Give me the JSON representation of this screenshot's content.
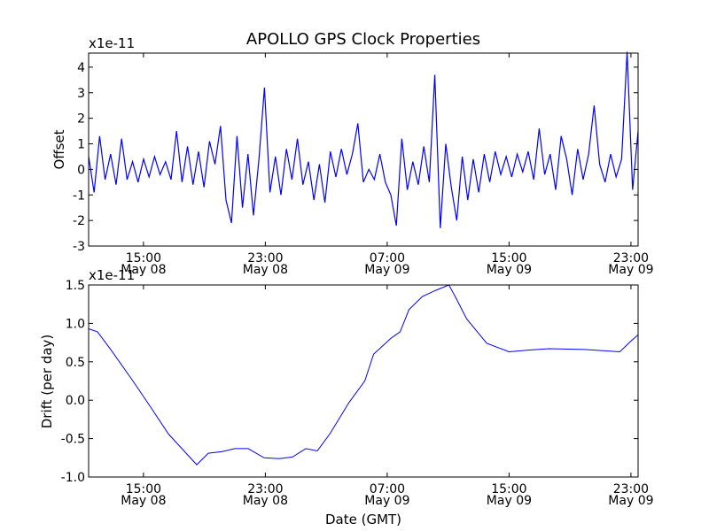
{
  "chart_data": [
    {
      "type": "line",
      "title": "APOLLO GPS Clock Properties",
      "ylabel": "Offset",
      "xlabel": "",
      "y_multiplier": "x1e-11",
      "color": "#0000ff",
      "xlim_hours": [
        11.4,
        47.47
      ],
      "ylim": [
        -3,
        4.55
      ],
      "yticks": [
        4,
        3,
        2,
        1,
        0,
        -1,
        -2,
        -3
      ],
      "ytick_labels": [
        "4",
        "3",
        "2",
        "1",
        "0",
        "-1",
        "-2",
        "-3"
      ],
      "xticks_hours": [
        15,
        23,
        31,
        39,
        47
      ],
      "xtick_labels": [
        [
          "15:00",
          "May 08"
        ],
        [
          "23:00",
          "May 08"
        ],
        [
          "07:00",
          "May 09"
        ],
        [
          "15:00",
          "May 09"
        ],
        [
          "23:00",
          "May 09"
        ]
      ],
      "values": [
        0.5,
        -0.9,
        1.3,
        -0.4,
        0.6,
        -0.6,
        1.2,
        -0.4,
        0.3,
        -0.5,
        0.4,
        -0.3,
        0.5,
        -0.2,
        0.3,
        -0.4,
        1.5,
        -0.5,
        0.9,
        -0.6,
        0.7,
        -0.7,
        1.1,
        0.2,
        1.7,
        -1.2,
        -2.1,
        1.3,
        -1.5,
        0.6,
        -1.8,
        0.4,
        3.2,
        -0.9,
        0.5,
        -1.0,
        0.8,
        -0.4,
        1.2,
        -0.6,
        0.3,
        -1.2,
        0.2,
        -1.3,
        0.7,
        -0.3,
        0.8,
        -0.2,
        0.6,
        1.8,
        -0.5,
        0.0,
        -0.4,
        0.6,
        -0.5,
        -1.0,
        -2.2,
        1.2,
        -0.8,
        0.3,
        -0.6,
        0.9,
        -0.5,
        3.7,
        -2.3,
        1.0,
        -0.7,
        -2.0,
        0.5,
        -1.2,
        0.4,
        -0.9,
        0.6,
        -0.5,
        0.7,
        -0.2,
        0.5,
        -0.3,
        0.6,
        -0.1,
        0.7,
        -0.4,
        1.6,
        -0.2,
        0.6,
        -0.8,
        1.3,
        0.4,
        -1.0,
        0.8,
        -0.4,
        0.6,
        2.5,
        0.2,
        -0.5,
        0.6,
        -0.3,
        0.4,
        4.6,
        -0.8,
        1.5
      ]
    },
    {
      "type": "line",
      "title": "",
      "ylabel": "Drift (per day)",
      "xlabel": "Date (GMT)",
      "y_multiplier": "x1e-11",
      "color": "#0000ff",
      "xlim_hours": [
        11.4,
        47.47
      ],
      "ylim": [
        -1.0,
        1.5
      ],
      "yticks": [
        1.5,
        1.0,
        0.5,
        0.0,
        -0.5,
        -1.0
      ],
      "ytick_labels": [
        "1.5",
        "1.0",
        "0.5",
        "0.0",
        "-0.5",
        "-1.0"
      ],
      "xticks_hours": [
        15,
        23,
        31,
        39,
        47
      ],
      "xtick_labels": [
        [
          "15:00",
          "May 08"
        ],
        [
          "23:00",
          "May 08"
        ],
        [
          "07:00",
          "May 09"
        ],
        [
          "15:00",
          "May 09"
        ],
        [
          "23:00",
          "May 09"
        ]
      ],
      "x_hours": [
        11.4,
        11.98,
        12.85,
        14.31,
        15.47,
        16.64,
        17.8,
        18.5,
        19.26,
        20.13,
        21.0,
        21.87,
        22.92,
        23.91,
        24.78,
        25.66,
        26.41,
        27.23,
        28.49,
        29.53,
        30.11,
        31.27,
        31.85,
        32.43,
        33.31,
        34.18,
        35.05,
        35.46,
        36.21,
        37.54,
        39.0,
        40.16,
        41.61,
        43.94,
        46.27,
        47.0,
        47.47
      ],
      "values": [
        0.93,
        0.89,
        0.66,
        0.25,
        -0.09,
        -0.44,
        -0.69,
        -0.84,
        -0.69,
        -0.67,
        -0.63,
        -0.63,
        -0.75,
        -0.76,
        -0.74,
        -0.63,
        -0.66,
        -0.44,
        -0.03,
        0.25,
        0.6,
        0.81,
        0.89,
        1.18,
        1.35,
        1.43,
        1.5,
        1.35,
        1.06,
        0.74,
        0.63,
        0.65,
        0.67,
        0.66,
        0.63,
        0.77,
        0.85
      ]
    }
  ]
}
